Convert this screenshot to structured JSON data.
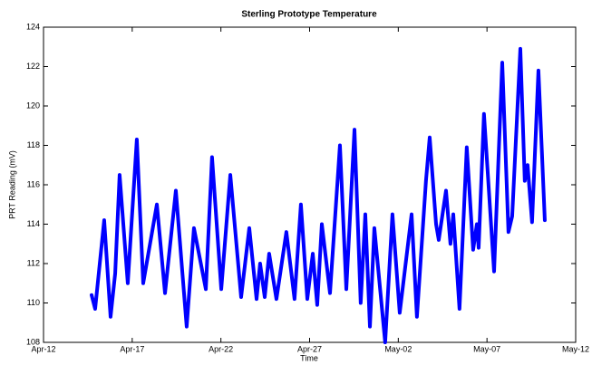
{
  "chart_data": {
    "type": "line",
    "title": "Sterling Prototype Temperature",
    "x_label": "Time",
    "y_label": "PRT Reading (mV)",
    "x": [
      2.71,
      2.91,
      3.42,
      3.78,
      4.04,
      4.29,
      4.75,
      5.26,
      5.62,
      6.39,
      6.85,
      7.46,
      8.07,
      8.48,
      9.15,
      9.5,
      10.02,
      10.53,
      11.14,
      11.6,
      12.01,
      12.21,
      12.47,
      12.72,
      13.13,
      13.69,
      14.15,
      14.51,
      14.87,
      15.18,
      15.43,
      15.69,
      16.15,
      16.71,
      17.07,
      17.53,
      17.88,
      18.14,
      18.4,
      18.65,
      19.26,
      19.67,
      20.08,
      20.75,
      21.05,
      21.56,
      21.77,
      22.13,
      22.28,
      22.69,
      22.94,
      23.1,
      23.45,
      23.86,
      24.22,
      24.43,
      24.53,
      24.83,
      25.4,
      25.86,
      26.21,
      26.42,
      26.88,
      27.13,
      27.29,
      27.54,
      27.9,
      28.26
    ],
    "values": [
      110.4,
      109.7,
      114.2,
      109.3,
      111.5,
      116.5,
      111,
      118.3,
      111,
      115,
      110.5,
      115.7,
      108.8,
      113.8,
      110.7,
      117.4,
      110.7,
      116.5,
      110.3,
      113.8,
      110.2,
      112,
      110.3,
      112.5,
      110.2,
      113.6,
      110.2,
      115,
      110.2,
      112.5,
      109.9,
      114,
      110.5,
      118,
      110.7,
      118.8,
      110,
      114.5,
      108.8,
      113.8,
      108,
      114.5,
      109.5,
      114.5,
      109.3,
      116.2,
      118.4,
      114,
      113.2,
      115.7,
      113,
      114.5,
      109.7,
      117.9,
      112.7,
      114,
      112.8,
      119.6,
      111.6,
      122.2,
      113.6,
      114.4,
      122.9,
      116.2,
      117,
      114.1,
      121.8,
      114.2
    ],
    "color": "#0000ff",
    "xlim": [
      0,
      30
    ],
    "xticks": [
      {
        "value": 0,
        "label": "Apr-12"
      },
      {
        "value": 5,
        "label": "Apr-17"
      },
      {
        "value": 10,
        "label": "Apr-22"
      },
      {
        "value": 15,
        "label": "Apr-27"
      },
      {
        "value": 20,
        "label": "May-02"
      },
      {
        "value": 25,
        "label": "May-07"
      },
      {
        "value": 30,
        "label": "May-12"
      }
    ],
    "ylim": [
      108,
      124
    ],
    "yticks": [
      108,
      110,
      112,
      114,
      116,
      118,
      120,
      122,
      124
    ]
  }
}
